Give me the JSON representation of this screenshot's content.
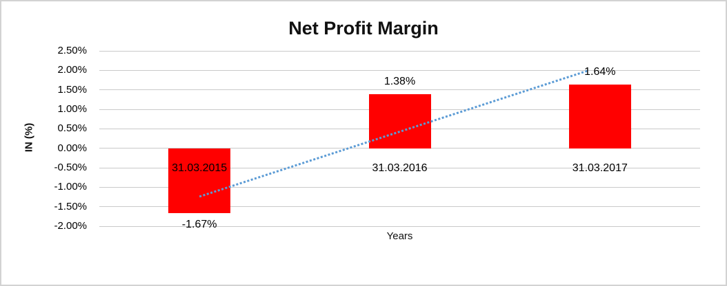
{
  "window": {
    "background": "#ffffff",
    "border_color": "#d2d2d2"
  },
  "chart_data": {
    "type": "bar",
    "title": "Net Profit Margin",
    "xlabel": "Years",
    "ylabel": "IN (%)",
    "categories": [
      "31.03.2015",
      "31.03.2016",
      "31.03.2017"
    ],
    "values": [
      -1.67,
      1.38,
      1.64
    ],
    "data_labels": [
      "-1.67%",
      "1.38%",
      "1.64%"
    ],
    "ylim": [
      -2.0,
      2.5
    ],
    "ytick_step": 0.5,
    "ytick_labels": [
      "2.50%",
      "2.00%",
      "1.50%",
      "1.00%",
      "0.50%",
      "0.00%",
      "-0.50%",
      "-1.00%",
      "-1.50%",
      "-2.00%"
    ],
    "grid": true,
    "legend": "none",
    "bar_color": "#ff0000",
    "gridline_color": "#c9c9c9",
    "trendline": {
      "style": "dotted",
      "color": "#5b9bd5",
      "start_value": -1.24,
      "end_value": 2.0
    }
  }
}
